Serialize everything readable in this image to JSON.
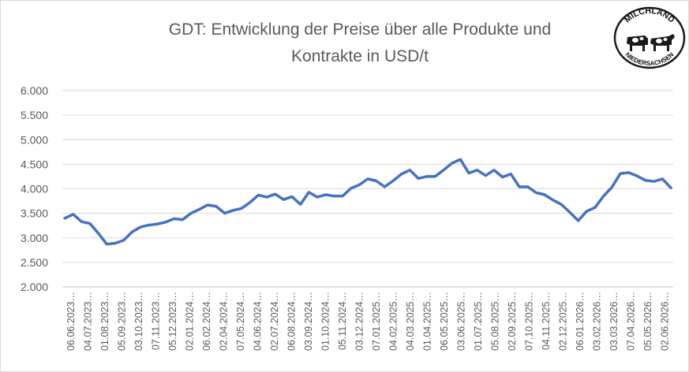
{
  "chart_data": {
    "type": "line",
    "title": "GDT: Entwicklung der Preise über alle Produkte und Kontrakte in USD/t",
    "title_lines": [
      "GDT: Entwicklung der Preise über alle Produkte und",
      "Kontrakte in USD/t"
    ],
    "xlabel": "",
    "ylabel": "",
    "ylim": [
      2000,
      6000
    ],
    "yticks": [
      2000,
      2500,
      3000,
      3500,
      4000,
      4500,
      5000,
      5500,
      6000
    ],
    "ytick_labels": [
      "2.000",
      "2.500",
      "3.000",
      "3.500",
      "4.000",
      "4.500",
      "5.000",
      "5.500",
      "6.000"
    ],
    "grid": "horizontal",
    "line_color": "#4472c4",
    "x_labels": [
      "06.06.2023",
      "04.07.2023",
      "01.08.2023",
      "05.09.2023",
      "03.10.2023",
      "07.11.2023",
      "05.12.2023",
      "02.01.2024",
      "06.02.2024",
      "02.04.2024",
      "07.05.2024",
      "04.06.2024",
      "02.07.2024",
      "06.08.2024",
      "03.09.2024",
      "01.10.2024",
      "05.11.2024",
      "03.12.2024",
      "07.01.2025",
      "04.02.2025",
      "04.03.2025",
      "01.04.2025",
      "06.05.2025",
      "03.06.2025",
      "01.07.2025",
      "05.08.2025",
      "02.09.2025",
      "07.10.2025",
      "04.11.2025",
      "02.12.2025",
      "06.01.2026",
      "03.02.2026",
      "03.03.2026",
      "07.04.2026",
      "05.05.2026",
      "02.06.2026"
    ],
    "x_tick_text": [
      "06.06.2023…",
      "04.07.2023…",
      "01.08.2023…",
      "05.09.2023…",
      "03.10.2023…",
      "07.11.2023…",
      "05.12.2023…",
      "02.01.2024…",
      "06.02.2024…",
      "02.04.2024…",
      "07.05.2024…",
      "04.06.2024…",
      "02.07.2024…",
      "06.08.2024…",
      "03.09.2024…",
      "01.10.2024…",
      "05.11.2024…",
      "03.12.2024…",
      "07.01.2025…",
      "04.02.2025…",
      "04.03.2025…",
      "01.04.2025…",
      "06.05.2025…",
      "03.06.2025…",
      "01.07.2025…",
      "05.08.2025…",
      "02.09.2025…",
      "07.10.2025…",
      "04.11.2025…",
      "02.12.2025…",
      "06.01.2026…",
      "03.02.2026…",
      "03.03.2026…",
      "07.04.2026…",
      "05.05.2026…",
      "02.06.2026…"
    ],
    "values": [
      3400,
      3480,
      3330,
      3290,
      3090,
      2870,
      2890,
      2950,
      3120,
      3220,
      3260,
      3280,
      3320,
      3390,
      3370,
      3500,
      3580,
      3670,
      3640,
      3500,
      3560,
      3600,
      3720,
      3870,
      3830,
      3890,
      3780,
      3840,
      3680,
      3930,
      3830,
      3880,
      3850,
      3850,
      4010,
      4080,
      4200,
      4160,
      4040,
      4160,
      4300,
      4380,
      4210,
      4250,
      4250,
      4380,
      4520,
      4600,
      4320,
      4380,
      4270,
      4380,
      4240,
      4300,
      4040,
      4040,
      3920,
      3880,
      3770,
      3680,
      3520,
      3350,
      3540,
      3620,
      3850,
      4030,
      4310,
      4330,
      4260,
      4170,
      4150,
      4200,
      4020
    ]
  },
  "logo": {
    "top_text": "MILCHLAND",
    "bottom_text": "NIEDERSACHSEN"
  }
}
